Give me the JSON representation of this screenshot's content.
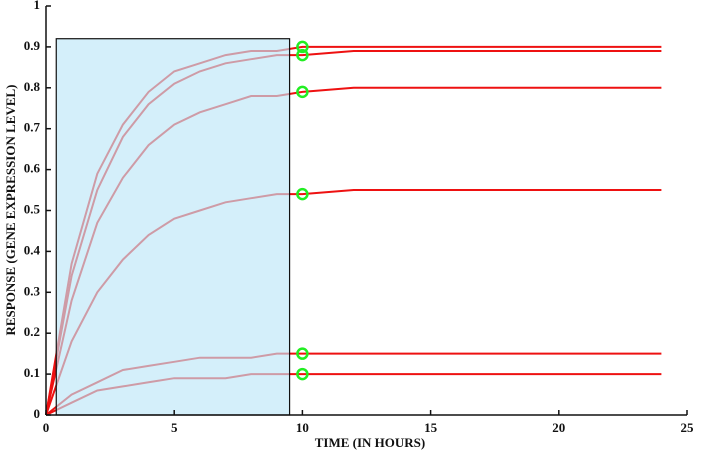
{
  "chart_data": {
    "type": "line",
    "xlabel": "TIME (IN HOURS)",
    "ylabel": "RESPONSE (GENE EXPRESSION LEVEL)",
    "x": [
      0,
      1,
      2,
      3,
      4,
      5,
      6,
      7,
      8,
      9,
      10,
      12,
      14,
      16,
      18,
      20,
      22,
      24
    ],
    "series": [
      {
        "color": "#ee1111",
        "values": [
          0,
          0.37,
          0.59,
          0.71,
          0.79,
          0.84,
          0.86,
          0.88,
          0.89,
          0.89,
          0.9,
          0.9,
          0.9,
          0.9,
          0.9,
          0.9,
          0.9,
          0.9
        ]
      },
      {
        "color": "#ee1111",
        "values": [
          0,
          0.34,
          0.55,
          0.68,
          0.76,
          0.81,
          0.84,
          0.86,
          0.87,
          0.88,
          0.88,
          0.89,
          0.89,
          0.89,
          0.89,
          0.89,
          0.89,
          0.89
        ]
      },
      {
        "color": "#ee1111",
        "values": [
          0,
          0.28,
          0.47,
          0.58,
          0.66,
          0.71,
          0.74,
          0.76,
          0.78,
          0.78,
          0.79,
          0.8,
          0.8,
          0.8,
          0.8,
          0.8,
          0.8,
          0.8
        ]
      },
      {
        "color": "#ee1111",
        "values": [
          0,
          0.18,
          0.3,
          0.38,
          0.44,
          0.48,
          0.5,
          0.52,
          0.53,
          0.54,
          0.54,
          0.55,
          0.55,
          0.55,
          0.55,
          0.55,
          0.55,
          0.55
        ]
      },
      {
        "color": "#ee1111",
        "values": [
          0,
          0.05,
          0.08,
          0.11,
          0.12,
          0.13,
          0.14,
          0.14,
          0.14,
          0.15,
          0.15,
          0.15,
          0.15,
          0.15,
          0.15,
          0.15,
          0.15,
          0.15
        ]
      },
      {
        "color": "#ee1111",
        "values": [
          0,
          0.03,
          0.06,
          0.07,
          0.08,
          0.09,
          0.09,
          0.09,
          0.1,
          0.1,
          0.1,
          0.1,
          0.1,
          0.1,
          0.1,
          0.1,
          0.1,
          0.1
        ]
      }
    ],
    "marker_x": 10,
    "marker_color": "#22ee22",
    "highlight": {
      "x": [
        0.4,
        9.5
      ],
      "y": [
        0,
        0.92
      ],
      "color": "#bde6f7"
    },
    "xlim": [
      0,
      25
    ],
    "xticks": [
      0,
      5,
      10,
      15,
      20,
      25
    ],
    "ylim": [
      0,
      1
    ],
    "yticks": [
      0,
      0.1,
      0.2,
      0.3,
      0.4,
      0.5,
      0.6,
      0.7,
      0.8,
      0.9,
      1
    ]
  }
}
